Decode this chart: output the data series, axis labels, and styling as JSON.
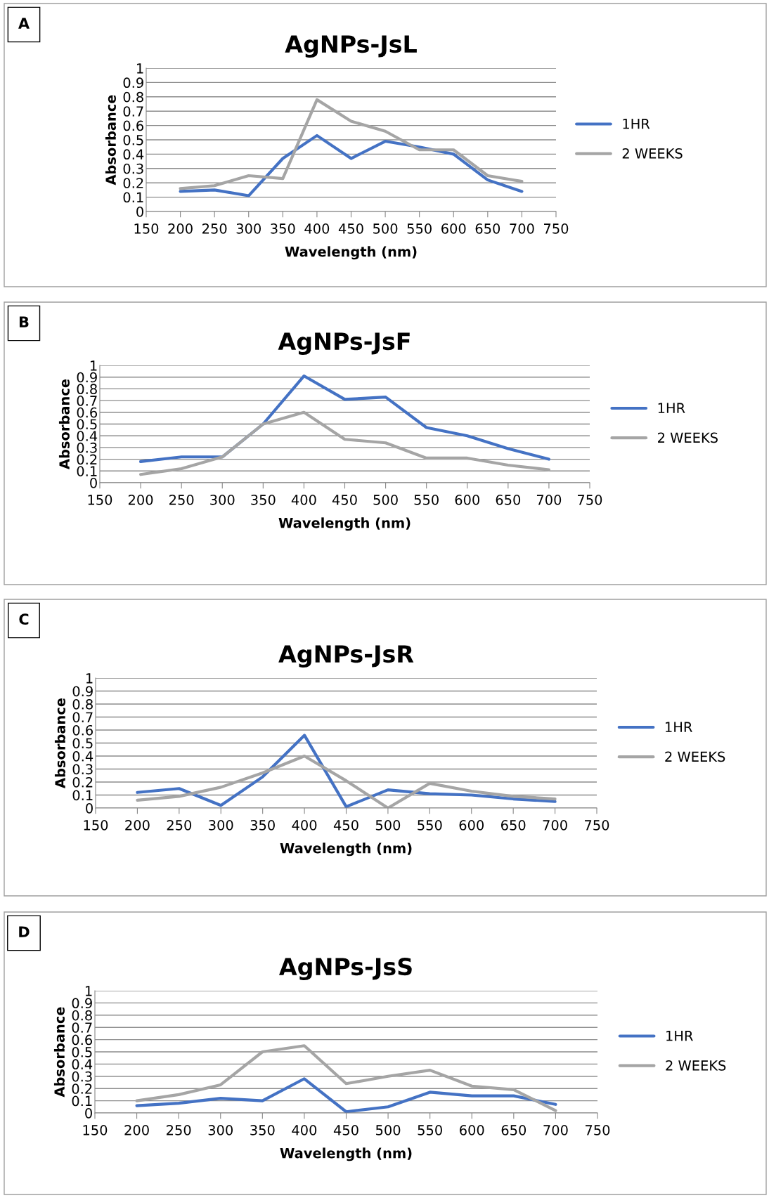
{
  "chart_data": [
    {
      "type": "line",
      "title": "AgNPs-JsL",
      "xlabel": "Wavelength (nm)",
      "ylabel": "Absorbance",
      "annotations": [
        "A"
      ],
      "x": [
        200,
        250,
        300,
        350,
        400,
        450,
        500,
        550,
        600,
        650,
        700
      ],
      "xlim": [
        150,
        750
      ],
      "xticks": [
        150,
        200,
        250,
        300,
        350,
        400,
        450,
        500,
        550,
        600,
        650,
        700,
        750
      ],
      "ylim": [
        0,
        1
      ],
      "yticks": [
        0,
        0.1,
        0.2,
        0.3,
        0.4,
        0.5,
        0.6,
        0.7,
        0.8,
        0.9,
        1
      ],
      "grid": "y",
      "legend": "right",
      "marker": "none",
      "line_style": "solid",
      "series": [
        {
          "name": "1HR",
          "color": "#4472c4",
          "values": [
            0.14,
            0.15,
            0.11,
            0.37,
            0.53,
            0.37,
            0.49,
            0.45,
            0.4,
            0.22,
            0.14
          ]
        },
        {
          "name": "2 WEEKS",
          "color": "#a5a5a5",
          "values": [
            0.16,
            0.18,
            0.25,
            0.23,
            0.78,
            0.63,
            0.56,
            0.43,
            0.43,
            0.25,
            0.21
          ]
        }
      ]
    },
    {
      "type": "line",
      "title": "AgNPs-JsF",
      "xlabel": "Wavelength (nm)",
      "ylabel": "Absorbance",
      "annotations": [
        "B"
      ],
      "x": [
        200,
        250,
        300,
        350,
        400,
        450,
        500,
        550,
        600,
        650,
        700
      ],
      "xlim": [
        150,
        750
      ],
      "xticks": [
        150,
        200,
        250,
        300,
        350,
        400,
        450,
        500,
        550,
        600,
        650,
        700,
        750
      ],
      "ylim": [
        0,
        1
      ],
      "yticks": [
        0,
        0.1,
        0.2,
        0.3,
        0.4,
        0.5,
        0.6,
        0.7,
        0.8,
        0.9,
        1
      ],
      "grid": "y",
      "legend": "right",
      "marker": "none",
      "line_style": "solid",
      "series": [
        {
          "name": "1HR",
          "color": "#4472c4",
          "values": [
            0.18,
            0.22,
            0.22,
            0.5,
            0.91,
            0.71,
            0.73,
            0.47,
            0.4,
            0.29,
            0.2
          ]
        },
        {
          "name": "2 WEEKS",
          "color": "#a5a5a5",
          "values": [
            0.07,
            0.12,
            0.22,
            0.5,
            0.6,
            0.37,
            0.34,
            0.21,
            0.21,
            0.15,
            0.11
          ]
        }
      ]
    },
    {
      "type": "line",
      "title": "AgNPs-JsR",
      "xlabel": "Wavelength (nm)",
      "ylabel": "Absorbance",
      "annotations": [
        "C"
      ],
      "x": [
        200,
        250,
        300,
        350,
        400,
        450,
        500,
        550,
        600,
        650,
        700
      ],
      "xlim": [
        150,
        750
      ],
      "xticks": [
        150,
        200,
        250,
        300,
        350,
        400,
        450,
        500,
        550,
        600,
        650,
        700,
        750
      ],
      "ylim": [
        0,
        1
      ],
      "yticks": [
        0,
        0.1,
        0.2,
        0.3,
        0.4,
        0.5,
        0.6,
        0.7,
        0.8,
        0.9,
        1
      ],
      "grid": "y",
      "legend": "right",
      "marker": "none",
      "line_style": "solid",
      "series": [
        {
          "name": "1HR",
          "color": "#4472c4",
          "values": [
            0.12,
            0.15,
            0.02,
            0.24,
            0.56,
            0.01,
            0.14,
            0.11,
            0.1,
            0.07,
            0.05
          ]
        },
        {
          "name": "2 WEEKS",
          "color": "#a5a5a5",
          "values": [
            0.06,
            0.09,
            0.16,
            0.27,
            0.4,
            0.21,
            0.0,
            0.19,
            0.13,
            0.09,
            0.07
          ]
        }
      ]
    },
    {
      "type": "line",
      "title": "AgNPs-JsS",
      "xlabel": "Wavelength (nm)",
      "ylabel": "Absorbance",
      "annotations": [
        "D"
      ],
      "x": [
        200,
        250,
        300,
        350,
        400,
        450,
        500,
        550,
        600,
        650,
        700
      ],
      "xlim": [
        150,
        750
      ],
      "xticks": [
        150,
        200,
        250,
        300,
        350,
        400,
        450,
        500,
        550,
        600,
        650,
        700,
        750
      ],
      "ylim": [
        0,
        1
      ],
      "yticks": [
        0,
        0.1,
        0.2,
        0.3,
        0.4,
        0.5,
        0.6,
        0.7,
        0.8,
        0.9,
        1
      ],
      "grid": "y",
      "legend": "right",
      "marker": "none",
      "line_style": "solid",
      "series": [
        {
          "name": "1HR",
          "color": "#4472c4",
          "values": [
            0.06,
            0.08,
            0.12,
            0.1,
            0.28,
            0.01,
            0.05,
            0.17,
            0.14,
            0.14,
            0.07
          ]
        },
        {
          "name": "2 WEEKS",
          "color": "#a5a5a5",
          "values": [
            0.1,
            0.15,
            0.23,
            0.5,
            0.55,
            0.24,
            0.3,
            0.35,
            0.22,
            0.19,
            0.02
          ]
        }
      ]
    }
  ]
}
